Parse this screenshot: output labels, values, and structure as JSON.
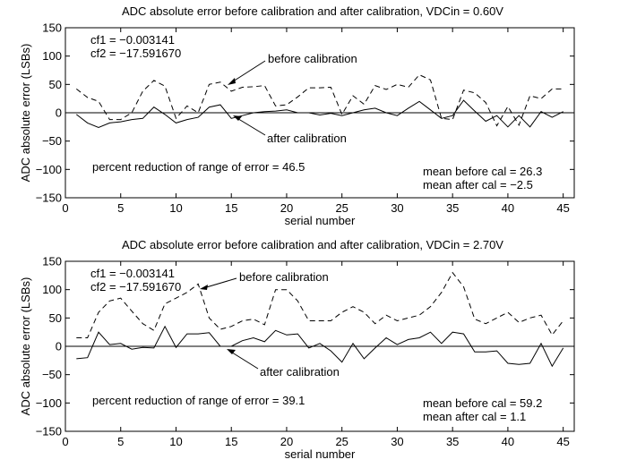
{
  "chart_data": [
    {
      "type": "line",
      "title": "ADC absolute error before calibration and after calibration, VDCin = 0.60V",
      "xlabel": "serial number",
      "ylabel": "ADC absolute error (LSBs)",
      "xlim": [
        0,
        46
      ],
      "ylim": [
        -150,
        150
      ],
      "xticks": [
        0,
        5,
        10,
        15,
        20,
        25,
        30,
        35,
        40,
        45
      ],
      "yticks": [
        -150,
        -100,
        -50,
        0,
        50,
        100,
        150
      ],
      "x": [
        1,
        2,
        3,
        4,
        5,
        6,
        7,
        8,
        9,
        10,
        11,
        12,
        13,
        14,
        15,
        16,
        17,
        18,
        19,
        20,
        21,
        22,
        23,
        24,
        25,
        26,
        27,
        28,
        29,
        30,
        31,
        32,
        33,
        34,
        35,
        36,
        37,
        38,
        39,
        40,
        41,
        42,
        43,
        44,
        45
      ],
      "series": [
        {
          "name": "before calibration",
          "style": "dashed",
          "values": [
            42,
            27,
            20,
            -12,
            -12,
            0,
            38,
            57,
            47,
            -10,
            12,
            0,
            50,
            54,
            38,
            45,
            46,
            48,
            12,
            14,
            28,
            44,
            44,
            45,
            -3,
            30,
            15,
            48,
            41,
            50,
            45,
            67,
            58,
            -10,
            -12,
            40,
            35,
            18,
            -23,
            11,
            -22,
            30,
            25,
            42,
            42
          ]
        },
        {
          "name": "after calibration",
          "style": "solid",
          "values": [
            -3,
            -18,
            -26,
            -18,
            -16,
            -12,
            -10,
            10,
            -3,
            -18,
            -12,
            -8,
            10,
            14,
            -10,
            -5,
            0,
            2,
            3,
            5,
            0,
            0,
            -4,
            -1,
            -5,
            0,
            5,
            8,
            0,
            -5,
            8,
            20,
            5,
            -10,
            -5,
            22,
            3,
            -15,
            -5,
            -25,
            -5,
            -25,
            2,
            -8,
            2
          ]
        }
      ],
      "annotations": {
        "cf1": "cf1 =   −0.003141",
        "cf2": "cf2 =  −17.591670",
        "before_label": "before calibration",
        "after_label": "after calibration",
        "percent": "percent reduction of range of error = 46.5",
        "mean_before": "mean before cal = 26.3",
        "mean_after": "mean after  cal = −2.5"
      }
    },
    {
      "type": "line",
      "title": "ADC absolute error before calibration and after calibration, VDCin = 2.70V",
      "xlabel": "serial number",
      "ylabel": "ADC absolute error (LSBs)",
      "xlim": [
        0,
        46
      ],
      "ylim": [
        -150,
        150
      ],
      "xticks": [
        0,
        5,
        10,
        15,
        20,
        25,
        30,
        35,
        40,
        45
      ],
      "yticks": [
        -150,
        -100,
        -50,
        0,
        50,
        100,
        150
      ],
      "x": [
        1,
        2,
        3,
        4,
        5,
        6,
        7,
        8,
        9,
        10,
        11,
        12,
        13,
        14,
        15,
        16,
        17,
        18,
        19,
        20,
        21,
        22,
        23,
        24,
        25,
        26,
        27,
        28,
        29,
        30,
        31,
        32,
        33,
        34,
        35,
        36,
        37,
        38,
        39,
        40,
        41,
        42,
        43,
        44,
        45
      ],
      "series": [
        {
          "name": "before calibration",
          "style": "dashed",
          "values": [
            15,
            15,
            60,
            80,
            85,
            62,
            40,
            28,
            75,
            85,
            95,
            110,
            50,
            30,
            35,
            45,
            48,
            38,
            100,
            100,
            80,
            45,
            45,
            45,
            60,
            70,
            60,
            40,
            55,
            45,
            50,
            55,
            70,
            95,
            130,
            105,
            48,
            40,
            50,
            60,
            42,
            50,
            55,
            20,
            45
          ]
        },
        {
          "name": "after calibration",
          "style": "solid",
          "values": [
            -22,
            -20,
            25,
            3,
            5,
            -5,
            -2,
            -3,
            35,
            -2,
            22,
            22,
            24,
            0,
            0,
            10,
            15,
            8,
            28,
            20,
            22,
            -3,
            5,
            -8,
            -28,
            5,
            -22,
            -3,
            15,
            3,
            12,
            15,
            25,
            5,
            25,
            22,
            -10,
            -10,
            -8,
            -30,
            -32,
            -30,
            5,
            -35,
            -3
          ]
        }
      ],
      "annotations": {
        "cf1": "cf1 =   −0.003141",
        "cf2": "cf2 =  −17.591670",
        "before_label": "before calibration",
        "after_label": "after calibration",
        "percent": "percent reduction of range of error = 39.1",
        "mean_before": "mean before cal = 59.2",
        "mean_after": "mean after  cal = 1.1"
      }
    }
  ]
}
